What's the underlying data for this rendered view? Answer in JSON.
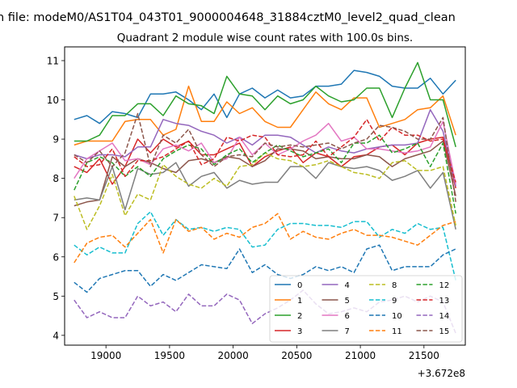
{
  "chart_data": {
    "type": "line",
    "suptitle": "n file: modeM0/AS1T04_043T01_9000004648_31884cztM0_level2_quad_clean",
    "title": "Quadrant 2 module wise count rates with 100.0s bins.",
    "xlabel": "",
    "ylabel": "",
    "offset_text": "+3.672e8",
    "xlim": [
      18675,
      21825
    ],
    "ylim": [
      3.75,
      11.35
    ],
    "xticks": [
      19000,
      19500,
      20000,
      20500,
      21000,
      21500
    ],
    "yticks": [
      4,
      5,
      6,
      7,
      8,
      9,
      10,
      11
    ],
    "legend_placement": "lower-right",
    "legend_columns": 4,
    "x": [
      18750,
      18850,
      18950,
      19050,
      19150,
      19250,
      19350,
      19450,
      19550,
      19650,
      19750,
      19850,
      19950,
      20050,
      20150,
      20250,
      20350,
      20450,
      20550,
      20650,
      20750,
      20850,
      20950,
      21050,
      21150,
      21250,
      21350,
      21450,
      21550,
      21650,
      21750
    ],
    "series": [
      {
        "name": "0",
        "color": "#1f77b4",
        "dash": "solid",
        "values": [
          9.5,
          9.6,
          9.4,
          9.7,
          9.65,
          9.55,
          10.15,
          10.15,
          10.2,
          10.0,
          9.75,
          10.15,
          9.55,
          10.15,
          10.3,
          10.05,
          10.25,
          10.05,
          10.1,
          10.35,
          10.35,
          10.4,
          10.75,
          10.7,
          10.6,
          10.35,
          10.3,
          10.3,
          10.55,
          10.15,
          10.5
        ]
      },
      {
        "name": "1",
        "color": "#ff7f0e",
        "dash": "solid",
        "values": [
          8.85,
          8.95,
          8.95,
          8.95,
          9.45,
          9.5,
          9.5,
          9.1,
          9.25,
          10.35,
          9.45,
          9.45,
          9.95,
          9.65,
          9.8,
          9.45,
          9.3,
          9.3,
          9.75,
          10.2,
          9.9,
          9.75,
          10.05,
          10.05,
          9.3,
          9.4,
          9.5,
          9.75,
          9.8,
          10.1,
          9.1
        ]
      },
      {
        "name": "2",
        "color": "#2ca02c",
        "dash": "solid",
        "values": [
          8.95,
          8.95,
          9.1,
          9.6,
          9.6,
          9.9,
          9.9,
          9.6,
          10.1,
          9.9,
          9.85,
          9.65,
          10.6,
          10.15,
          10.1,
          9.75,
          10.1,
          9.9,
          10.0,
          10.35,
          10.1,
          9.95,
          10.0,
          10.3,
          10.3,
          9.55,
          10.3,
          10.95,
          10.0,
          10.0,
          8.8
        ]
      },
      {
        "name": "3",
        "color": "#d62728",
        "dash": "solid",
        "values": [
          8.3,
          8.15,
          8.5,
          7.85,
          8.3,
          9.0,
          8.65,
          9.0,
          8.8,
          8.95,
          8.6,
          8.6,
          8.75,
          8.9,
          8.3,
          8.55,
          8.7,
          8.8,
          8.4,
          8.65,
          8.55,
          8.3,
          8.55,
          8.6,
          8.8,
          8.85,
          8.6,
          8.9,
          9.0,
          9.05,
          7.75
        ]
      },
      {
        "name": "4",
        "color": "#9467bd",
        "dash": "solid",
        "values": [
          8.6,
          8.5,
          8.6,
          8.6,
          8.55,
          8.8,
          8.8,
          9.5,
          9.4,
          9.35,
          9.2,
          9.1,
          8.9,
          9.05,
          8.85,
          9.1,
          9.1,
          9.05,
          8.85,
          8.65,
          8.8,
          8.7,
          8.65,
          8.75,
          8.8,
          8.85,
          8.85,
          8.9,
          9.75,
          9.2,
          7.8
        ]
      },
      {
        "name": "5",
        "color": "#8c564b",
        "dash": "solid",
        "values": [
          7.3,
          7.4,
          7.45,
          8.55,
          8.3,
          8.5,
          8.4,
          8.25,
          8.15,
          8.45,
          8.5,
          8.4,
          8.55,
          8.5,
          8.3,
          8.45,
          8.75,
          8.75,
          8.7,
          8.5,
          8.55,
          8.5,
          8.5,
          8.6,
          8.55,
          8.3,
          8.5,
          8.6,
          8.7,
          8.95,
          7.55
        ]
      },
      {
        "name": "6",
        "color": "#e377c2",
        "dash": "solid",
        "values": [
          8.0,
          8.5,
          8.7,
          8.9,
          8.45,
          8.5,
          8.35,
          8.75,
          8.85,
          8.7,
          8.9,
          8.4,
          8.5,
          9.05,
          8.6,
          8.9,
          8.6,
          8.75,
          8.95,
          9.1,
          9.4,
          8.95,
          9.05,
          8.75,
          8.75,
          8.7,
          8.65,
          8.7,
          8.8,
          9.45,
          7.85
        ]
      },
      {
        "name": "7",
        "color": "#7f7f7f",
        "dash": "solid",
        "values": [
          7.45,
          7.5,
          7.45,
          8.3,
          7.2,
          8.25,
          8.1,
          8.15,
          8.4,
          7.8,
          8.05,
          8.15,
          7.75,
          7.95,
          7.85,
          7.9,
          7.9,
          8.3,
          8.3,
          8.0,
          8.4,
          8.3,
          8.25,
          8.3,
          8.2,
          7.95,
          8.05,
          8.2,
          7.75,
          8.15,
          6.7
        ]
      },
      {
        "name": "8",
        "color": "#bcbd22",
        "dash": "dashed",
        "values": [
          7.55,
          6.7,
          7.3,
          8.1,
          7.05,
          7.6,
          7.45,
          8.35,
          8.05,
          7.85,
          7.75,
          8.0,
          7.8,
          8.3,
          8.35,
          8.65,
          8.5,
          8.45,
          8.3,
          8.35,
          8.45,
          8.3,
          8.15,
          8.1,
          8.0,
          8.4,
          8.45,
          8.2,
          8.2,
          8.3,
          6.8
        ]
      },
      {
        "name": "9",
        "color": "#17becf",
        "dash": "dashed",
        "values": [
          6.3,
          6.05,
          6.25,
          6.1,
          6.1,
          6.85,
          7.15,
          6.55,
          6.95,
          6.7,
          6.75,
          6.65,
          6.75,
          6.7,
          6.25,
          6.3,
          6.7,
          6.85,
          6.85,
          6.8,
          6.8,
          6.75,
          6.9,
          6.9,
          6.5,
          6.7,
          6.6,
          6.85,
          6.7,
          6.75,
          5.4
        ]
      },
      {
        "name": "10",
        "color": "#1f77b4",
        "dash": "dashed",
        "values": [
          5.35,
          5.1,
          5.45,
          5.55,
          5.65,
          5.65,
          5.25,
          5.55,
          5.4,
          5.6,
          5.8,
          5.75,
          5.7,
          6.2,
          5.6,
          5.8,
          5.55,
          5.45,
          5.55,
          5.75,
          5.65,
          5.75,
          5.6,
          6.2,
          6.3,
          5.65,
          5.75,
          5.75,
          5.75,
          6.05,
          6.2
        ]
      },
      {
        "name": "11",
        "color": "#ff7f0e",
        "dash": "dashed",
        "values": [
          5.85,
          6.35,
          6.5,
          6.55,
          6.25,
          6.6,
          6.95,
          6.1,
          6.95,
          6.65,
          6.75,
          6.45,
          6.6,
          6.5,
          6.75,
          6.85,
          7.1,
          6.45,
          6.65,
          6.5,
          6.45,
          6.6,
          6.7,
          6.55,
          6.55,
          6.5,
          6.4,
          6.3,
          6.55,
          6.8,
          6.9
        ]
      },
      {
        "name": "12",
        "color": "#2ca02c",
        "dash": "dashed",
        "values": [
          7.7,
          8.4,
          8.55,
          8.4,
          8.05,
          8.3,
          8.05,
          8.5,
          8.7,
          8.85,
          8.75,
          8.35,
          8.6,
          8.75,
          8.4,
          8.65,
          8.85,
          8.7,
          8.55,
          8.65,
          8.75,
          8.4,
          8.9,
          8.9,
          9.1,
          8.65,
          8.75,
          8.9,
          8.3,
          8.9,
          7.1
        ]
      },
      {
        "name": "13",
        "color": "#d62728",
        "dash": "dashed",
        "values": [
          8.55,
          8.3,
          8.35,
          8.75,
          8.05,
          8.45,
          8.45,
          8.55,
          8.75,
          8.95,
          8.35,
          8.5,
          9.05,
          8.95,
          9.1,
          9.05,
          8.6,
          8.55,
          8.6,
          8.95,
          8.55,
          8.8,
          9.05,
          9.5,
          8.95,
          9.3,
          9.1,
          9.1,
          8.95,
          9.0,
          7.9
        ]
      },
      {
        "name": "14",
        "color": "#9467bd",
        "dash": "dashed",
        "values": [
          4.9,
          4.45,
          4.6,
          4.45,
          4.45,
          5.0,
          4.75,
          4.85,
          4.6,
          5.05,
          4.75,
          4.75,
          5.05,
          4.9,
          4.3,
          4.55,
          4.7,
          4.9,
          5.15,
          4.8,
          4.55,
          4.6,
          4.7,
          4.6,
          4.85,
          4.9,
          5.0,
          4.85,
          5.0,
          4.85,
          4.05
        ]
      },
      {
        "name": "15",
        "color": "#8c564b",
        "dash": "dashed",
        "values": [
          8.6,
          8.4,
          8.7,
          8.3,
          8.65,
          9.65,
          8.3,
          9.1,
          8.9,
          9.25,
          8.6,
          8.3,
          8.55,
          8.6,
          8.55,
          8.9,
          8.8,
          8.85,
          8.8,
          8.85,
          8.9,
          8.75,
          8.9,
          9.0,
          9.35,
          9.3,
          9.2,
          9.0,
          9.0,
          9.55,
          7.4
        ]
      }
    ]
  }
}
